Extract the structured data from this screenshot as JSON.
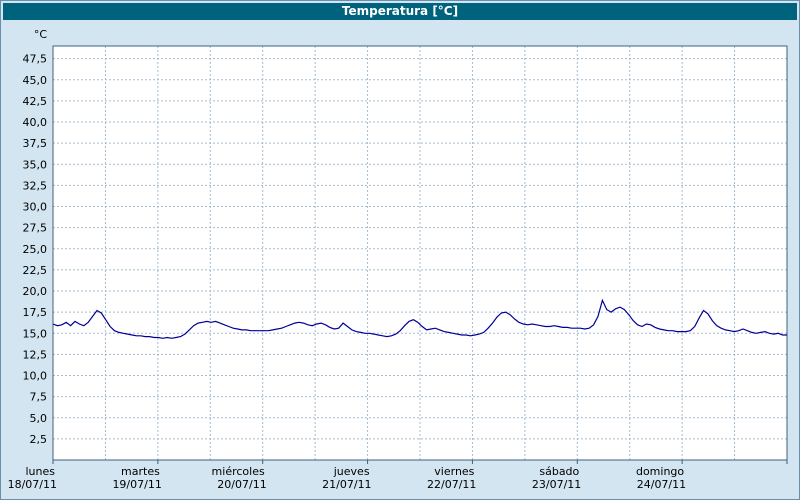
{
  "window": {
    "title": "Temperatura [°C]"
  },
  "colors": {
    "background": "#d2e5f1",
    "titlebar": "#00637e",
    "titlebar_text": "#ffffff",
    "plot_bg": "#ffffff",
    "grid": "#a3bccf",
    "axis": "#3f607f",
    "line": "#000099"
  },
  "chart_data": {
    "type": "line",
    "title": "Temperatura [°C]",
    "ylabel": "°C",
    "xlabel": "",
    "ylim": [
      0,
      49
    ],
    "ytick_step": 2.5,
    "ytick_labels": [
      "2,5",
      "5,0",
      "7,5",
      "10,0",
      "12,5",
      "15,0",
      "17,5",
      "20,0",
      "22,5",
      "25,0",
      "27,5",
      "30,0",
      "32,5",
      "35,0",
      "37,5",
      "40,0",
      "42,5",
      "45,0",
      "47,5"
    ],
    "x_total_hours": 168,
    "x_grid_step_hours": 12,
    "grid": true,
    "legend_position": "none",
    "x_days": [
      {
        "name": "lunes",
        "date": "18/07/11"
      },
      {
        "name": "martes",
        "date": "19/07/11"
      },
      {
        "name": "miércoles",
        "date": "20/07/11"
      },
      {
        "name": "jueves",
        "date": "21/07/11"
      },
      {
        "name": "viernes",
        "date": "22/07/11"
      },
      {
        "name": "sábado",
        "date": "23/07/11"
      },
      {
        "name": "domingo",
        "date": "24/07/11"
      }
    ],
    "series": [
      {
        "name": "Temperatura",
        "unit": "°C",
        "values": [
          16.1,
          15.9,
          16.0,
          16.3,
          15.9,
          16.4,
          16.1,
          15.9,
          16.3,
          17.0,
          17.7,
          17.4,
          16.6,
          15.8,
          15.3,
          15.1,
          15.0,
          14.9,
          14.8,
          14.7,
          14.7,
          14.6,
          14.6,
          14.5,
          14.5,
          14.4,
          14.5,
          14.4,
          14.5,
          14.6,
          14.9,
          15.4,
          15.9,
          16.2,
          16.3,
          16.4,
          16.3,
          16.4,
          16.2,
          16.0,
          15.8,
          15.6,
          15.5,
          15.4,
          15.4,
          15.3,
          15.3,
          15.3,
          15.3,
          15.3,
          15.4,
          15.5,
          15.6,
          15.8,
          16.0,
          16.2,
          16.3,
          16.2,
          16.0,
          15.9,
          16.1,
          16.2,
          16.0,
          15.7,
          15.5,
          15.6,
          16.2,
          15.8,
          15.4,
          15.2,
          15.1,
          15.0,
          15.0,
          14.9,
          14.8,
          14.7,
          14.6,
          14.7,
          14.9,
          15.3,
          15.9,
          16.4,
          16.6,
          16.3,
          15.8,
          15.4,
          15.5,
          15.6,
          15.4,
          15.2,
          15.1,
          15.0,
          14.9,
          14.8,
          14.8,
          14.7,
          14.8,
          14.9,
          15.1,
          15.6,
          16.2,
          16.9,
          17.4,
          17.5,
          17.2,
          16.7,
          16.3,
          16.1,
          16.0,
          16.1,
          16.0,
          15.9,
          15.8,
          15.8,
          15.9,
          15.8,
          15.7,
          15.7,
          15.6,
          15.6,
          15.6,
          15.5,
          15.6,
          16.0,
          17.0,
          18.9,
          17.8,
          17.5,
          17.9,
          18.1,
          17.8,
          17.2,
          16.5,
          16.0,
          15.8,
          16.1,
          16.0,
          15.7,
          15.5,
          15.4,
          15.3,
          15.3,
          15.2,
          15.2,
          15.2,
          15.3,
          15.8,
          16.8,
          17.7,
          17.3,
          16.5,
          15.9,
          15.6,
          15.4,
          15.3,
          15.2,
          15.3,
          15.5,
          15.3,
          15.1,
          15.0,
          15.1,
          15.2,
          15.0,
          14.9,
          15.0,
          14.8,
          14.8
        ]
      }
    ]
  }
}
